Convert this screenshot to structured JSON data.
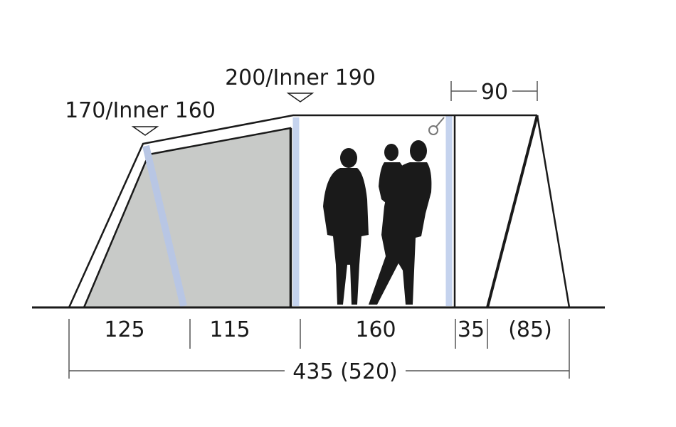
{
  "heights": {
    "front_height": "170/Inner 160",
    "middle_height": "200/Inner 190"
  },
  "canopy_depth": "90",
  "segments": [
    "125",
    "115",
    "160",
    "35",
    "(85)"
  ],
  "total_length": "435 (520)",
  "colors": {
    "line": "#1a1a1a",
    "inner_fill": "#c8cac8",
    "pole": "#c5d3ee",
    "dimension_line": "#555555"
  },
  "icons": [
    "people-silhouette-icon",
    "peg-hook-icon",
    "height-marker-icon"
  ]
}
